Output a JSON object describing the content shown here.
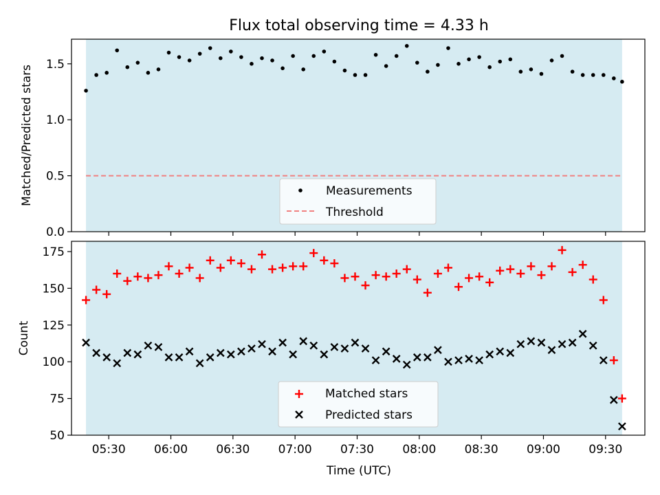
{
  "figure": {
    "title": "Flux total observing time = 4.33 h",
    "xlabel": "Time (UTC)"
  },
  "chart_data": [
    {
      "type": "scatter",
      "ylabel": "Matched/Predicted stars",
      "ylim": [
        0,
        1.72
      ],
      "xlim": [
        "05:12",
        "09:49"
      ],
      "yticks": [
        0.0,
        0.5,
        1.0,
        1.5
      ],
      "ytick_labels": [
        "0.0",
        "0.5",
        "1.0",
        "1.5"
      ],
      "shaded_region": {
        "from": "05:19",
        "to": "09:38",
        "color": "#add8e6"
      },
      "threshold": {
        "name": "Threshold",
        "value": 0.5,
        "color": "#f08080"
      },
      "legend": {
        "placement": "lower-center",
        "entries": [
          "Measurements",
          "Threshold"
        ]
      },
      "series": [
        {
          "name": "Measurements",
          "color": "#000000",
          "x": [
            "05:19",
            "05:24",
            "05:29",
            "05:34",
            "05:39",
            "05:44",
            "05:49",
            "05:54",
            "05:59",
            "06:04",
            "06:09",
            "06:14",
            "06:19",
            "06:24",
            "06:29",
            "06:34",
            "06:39",
            "06:44",
            "06:49",
            "06:54",
            "06:59",
            "07:04",
            "07:09",
            "07:14",
            "07:19",
            "07:24",
            "07:29",
            "07:34",
            "07:39",
            "07:44",
            "07:49",
            "07:54",
            "07:59",
            "08:04",
            "08:09",
            "08:14",
            "08:19",
            "08:24",
            "08:29",
            "08:34",
            "08:39",
            "08:44",
            "08:49",
            "08:54",
            "08:59",
            "09:04",
            "09:09",
            "09:14",
            "09:19",
            "09:24",
            "09:29",
            "09:34",
            "09:38"
          ],
          "y": [
            1.26,
            1.4,
            1.42,
            1.62,
            1.47,
            1.51,
            1.42,
            1.45,
            1.6,
            1.56,
            1.53,
            1.59,
            1.64,
            1.55,
            1.61,
            1.56,
            1.5,
            1.55,
            1.53,
            1.46,
            1.57,
            1.45,
            1.57,
            1.61,
            1.52,
            1.44,
            1.4,
            1.4,
            1.58,
            1.48,
            1.57,
            1.66,
            1.51,
            1.43,
            1.49,
            1.64,
            1.5,
            1.54,
            1.56,
            1.47,
            1.52,
            1.54,
            1.43,
            1.45,
            1.41,
            1.53,
            1.57,
            1.43,
            1.4,
            1.4,
            1.4,
            1.37,
            1.34
          ]
        }
      ]
    },
    {
      "type": "scatter",
      "ylabel": "Count",
      "ylim": [
        50,
        182
      ],
      "xlim": [
        "05:12",
        "09:49"
      ],
      "yticks": [
        50,
        75,
        100,
        125,
        150,
        175
      ],
      "ytick_labels": [
        "50",
        "75",
        "100",
        "125",
        "150",
        "175"
      ],
      "xticks": [
        "05:30",
        "06:00",
        "06:30",
        "07:00",
        "07:30",
        "08:00",
        "08:30",
        "09:00",
        "09:30"
      ],
      "shaded_region": {
        "from": "05:19",
        "to": "09:38",
        "color": "#add8e6"
      },
      "legend": {
        "placement": "lower-center",
        "entries": [
          "Matched stars",
          "Predicted stars"
        ]
      },
      "series": [
        {
          "name": "Matched stars",
          "marker": "plus",
          "color": "#ff0000",
          "x": [
            "05:19",
            "05:24",
            "05:29",
            "05:34",
            "05:39",
            "05:44",
            "05:49",
            "05:54",
            "05:59",
            "06:04",
            "06:09",
            "06:14",
            "06:19",
            "06:24",
            "06:29",
            "06:34",
            "06:39",
            "06:44",
            "06:49",
            "06:54",
            "06:59",
            "07:04",
            "07:09",
            "07:14",
            "07:19",
            "07:24",
            "07:29",
            "07:34",
            "07:39",
            "07:44",
            "07:49",
            "07:54",
            "07:59",
            "08:04",
            "08:09",
            "08:14",
            "08:19",
            "08:24",
            "08:29",
            "08:34",
            "08:39",
            "08:44",
            "08:49",
            "08:54",
            "08:59",
            "09:04",
            "09:09",
            "09:14",
            "09:19",
            "09:24",
            "09:29",
            "09:34",
            "09:38"
          ],
          "y": [
            142,
            149,
            146,
            160,
            155,
            158,
            157,
            159,
            165,
            160,
            164,
            157,
            169,
            164,
            169,
            167,
            163,
            173,
            163,
            164,
            165,
            165,
            174,
            169,
            167,
            157,
            158,
            152,
            159,
            158,
            160,
            163,
            156,
            147,
            160,
            164,
            151,
            157,
            158,
            154,
            162,
            163,
            160,
            165,
            159,
            165,
            176,
            161,
            166,
            156,
            142,
            101,
            75
          ]
        },
        {
          "name": "Predicted stars",
          "marker": "x",
          "color": "#000000",
          "x": [
            "05:19",
            "05:24",
            "05:29",
            "05:34",
            "05:39",
            "05:44",
            "05:49",
            "05:54",
            "05:59",
            "06:04",
            "06:09",
            "06:14",
            "06:19",
            "06:24",
            "06:29",
            "06:34",
            "06:39",
            "06:44",
            "06:49",
            "06:54",
            "06:59",
            "07:04",
            "07:09",
            "07:14",
            "07:19",
            "07:24",
            "07:29",
            "07:34",
            "07:39",
            "07:44",
            "07:49",
            "07:54",
            "07:59",
            "08:04",
            "08:09",
            "08:14",
            "08:19",
            "08:24",
            "08:29",
            "08:34",
            "08:39",
            "08:44",
            "08:49",
            "08:54",
            "08:59",
            "09:04",
            "09:09",
            "09:14",
            "09:19",
            "09:24",
            "09:29",
            "09:34",
            "09:38"
          ],
          "y": [
            113,
            106,
            103,
            99,
            106,
            105,
            111,
            110,
            103,
            103,
            107,
            99,
            103,
            106,
            105,
            107,
            109,
            112,
            107,
            113,
            105,
            114,
            111,
            105,
            110,
            109,
            113,
            109,
            101,
            107,
            102,
            98,
            103,
            103,
            108,
            100,
            101,
            102,
            101,
            105,
            107,
            106,
            112,
            114,
            113,
            108,
            112,
            113,
            119,
            111,
            101,
            74,
            56
          ]
        }
      ]
    }
  ]
}
